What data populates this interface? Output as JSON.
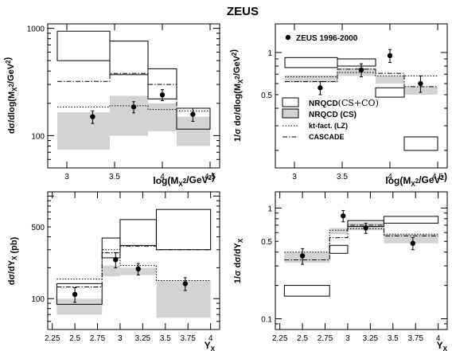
{
  "figure_title": "ZEUS",
  "legend": {
    "data": "ZEUS 1996-2000",
    "nrqcd_cs_co": "NRQCD",
    "nrqcd_cs_co_suffix": "(CS+CO)",
    "nrqcd_cs": "NRQCD (CS)",
    "kt_fact": "kt-fact. (LZ)",
    "cascade": "CASCADE"
  },
  "colors": {
    "nrqcd_cs_fill": "#d3d3d3",
    "data_marker": "#000000",
    "frame": "#000000"
  },
  "chart_data": [
    {
      "id": "mx-abs",
      "type": "line",
      "xlabel": "log(M_X^2/GeV^2)",
      "ylabel": "dσ/dlog(M_X^2/GeV^2)",
      "xlim": [
        2.8,
        4.6
      ],
      "ylim": [
        50,
        1100
      ],
      "log_y": true,
      "xticks": [
        "3",
        "3.5",
        "4",
        "4.5"
      ],
      "yticks": [
        "100",
        "1000"
      ],
      "bins": [
        [
          2.9,
          3.45
        ],
        [
          3.45,
          3.85
        ],
        [
          3.85,
          4.15
        ],
        [
          4.15,
          4.5
        ]
      ],
      "data": {
        "x": [
          3.27,
          3.7,
          4.0,
          4.32
        ],
        "y": [
          150,
          185,
          240,
          158
        ],
        "err": [
          20,
          22,
          28,
          22
        ]
      },
      "nrqcd_cs_co": [
        [
          500,
          940
        ],
        [
          370,
          760
        ],
        [
          220,
          420
        ],
        [
          115,
          180
        ]
      ],
      "nrqcd_cs": [
        [
          74,
          165
        ],
        [
          100,
          235
        ],
        [
          110,
          200
        ],
        [
          80,
          150
        ]
      ],
      "kt_fact": [
        185,
        190,
        175,
        170
      ],
      "cascade": [
        320,
        380,
        300,
        180
      ]
    },
    {
      "id": "mx-norm",
      "type": "line",
      "xlabel": "log(M_X^2/GeV^2)",
      "ylabel": "1/σ dσ/dlog(M_X^2/GeV^2)",
      "xlim": [
        2.8,
        4.6
      ],
      "ylim": [
        0.15,
        1.6
      ],
      "log_y": true,
      "xticks": [
        "3",
        "3.5",
        "4",
        "4.5"
      ],
      "yticks": [
        "0.5",
        "1"
      ],
      "bins": [
        [
          2.9,
          3.45
        ],
        [
          3.45,
          3.85
        ],
        [
          3.85,
          4.15
        ],
        [
          4.15,
          4.5
        ]
      ],
      "data": {
        "x": [
          3.27,
          3.7,
          4.0,
          4.32
        ],
        "y": [
          0.56,
          0.75,
          0.95,
          0.6
        ],
        "err": [
          0.06,
          0.08,
          0.1,
          0.08
        ]
      },
      "nrqcd_cs_co": [
        [
          0.78,
          0.92
        ],
        [
          0.8,
          0.9
        ],
        [
          0.48,
          0.56
        ],
        [
          0.2,
          0.25
        ]
      ],
      "nrqcd_cs": [
        [
          0.61,
          0.69
        ],
        [
          0.68,
          0.77
        ],
        [
          0.6,
          0.68
        ],
        [
          0.5,
          0.57
        ]
      ],
      "kt_fact": [
        0.67,
        0.72,
        0.68,
        0.68
      ],
      "cascade": [
        0.62,
        0.76,
        0.71,
        0.57
      ]
    },
    {
      "id": "yx-abs",
      "type": "line",
      "xlabel": "Y_X",
      "ylabel": "dσ/dY_X (pb)",
      "xlim": [
        2.2,
        4.1
      ],
      "ylim": [
        50,
        1100
      ],
      "log_y": true,
      "xticks": [
        "2.25",
        "2.5",
        "2.75",
        "3",
        "3.25",
        "3.5",
        "3.75",
        "4"
      ],
      "yticks": [
        "100",
        "500"
      ],
      "bins": [
        [
          2.3,
          2.8
        ],
        [
          2.8,
          3.0
        ],
        [
          3.0,
          3.4
        ],
        [
          3.4,
          4.0
        ]
      ],
      "data": {
        "x": [
          2.5,
          2.95,
          3.2,
          3.72
        ],
        "y": [
          110,
          240,
          195,
          140
        ],
        "err": [
          18,
          40,
          25,
          20
        ]
      },
      "nrqcd_cs_co": [
        [
          88,
          140
        ],
        [
          250,
          390
        ],
        [
          330,
          590
        ],
        [
          300,
          740
        ]
      ],
      "nrqcd_cs": [
        [
          70,
          100
        ],
        [
          165,
          210
        ],
        [
          170,
          200
        ],
        [
          65,
          150
        ]
      ],
      "kt_fact": [
        155,
        300,
        210,
        150
      ],
      "cascade": [
        130,
        280,
        325,
        300
      ]
    },
    {
      "id": "yx-norm",
      "type": "line",
      "xlabel": "Y_X",
      "ylabel": "1/σ dσ/dY_X",
      "xlim": [
        2.2,
        4.1
      ],
      "ylim": [
        0.08,
        1.4
      ],
      "log_y": true,
      "xticks": [
        "2.25",
        "2.5",
        "2.75",
        "3",
        "3.25",
        "3.5",
        "3.75",
        "4"
      ],
      "yticks": [
        "0.1",
        "0.5",
        "1"
      ],
      "bins": [
        [
          2.3,
          2.8
        ],
        [
          2.8,
          3.0
        ],
        [
          3.0,
          3.4
        ],
        [
          3.4,
          4.0
        ]
      ],
      "data": {
        "x": [
          2.5,
          2.95,
          3.2,
          3.72
        ],
        "y": [
          0.37,
          0.85,
          0.66,
          0.48
        ],
        "err": [
          0.06,
          0.1,
          0.07,
          0.06
        ]
      },
      "nrqcd_cs_co": [
        [
          0.16,
          0.2
        ],
        [
          0.39,
          0.46
        ],
        [
          0.68,
          0.77
        ],
        [
          0.73,
          0.84
        ]
      ],
      "nrqcd_cs": [
        [
          0.32,
          0.4
        ],
        [
          0.58,
          0.66
        ],
        [
          0.63,
          0.74
        ],
        [
          0.48,
          0.58
        ]
      ],
      "kt_fact": [
        0.4,
        0.63,
        0.65,
        0.58
      ],
      "cascade": [
        0.34,
        0.54,
        0.7,
        0.56
      ]
    }
  ]
}
